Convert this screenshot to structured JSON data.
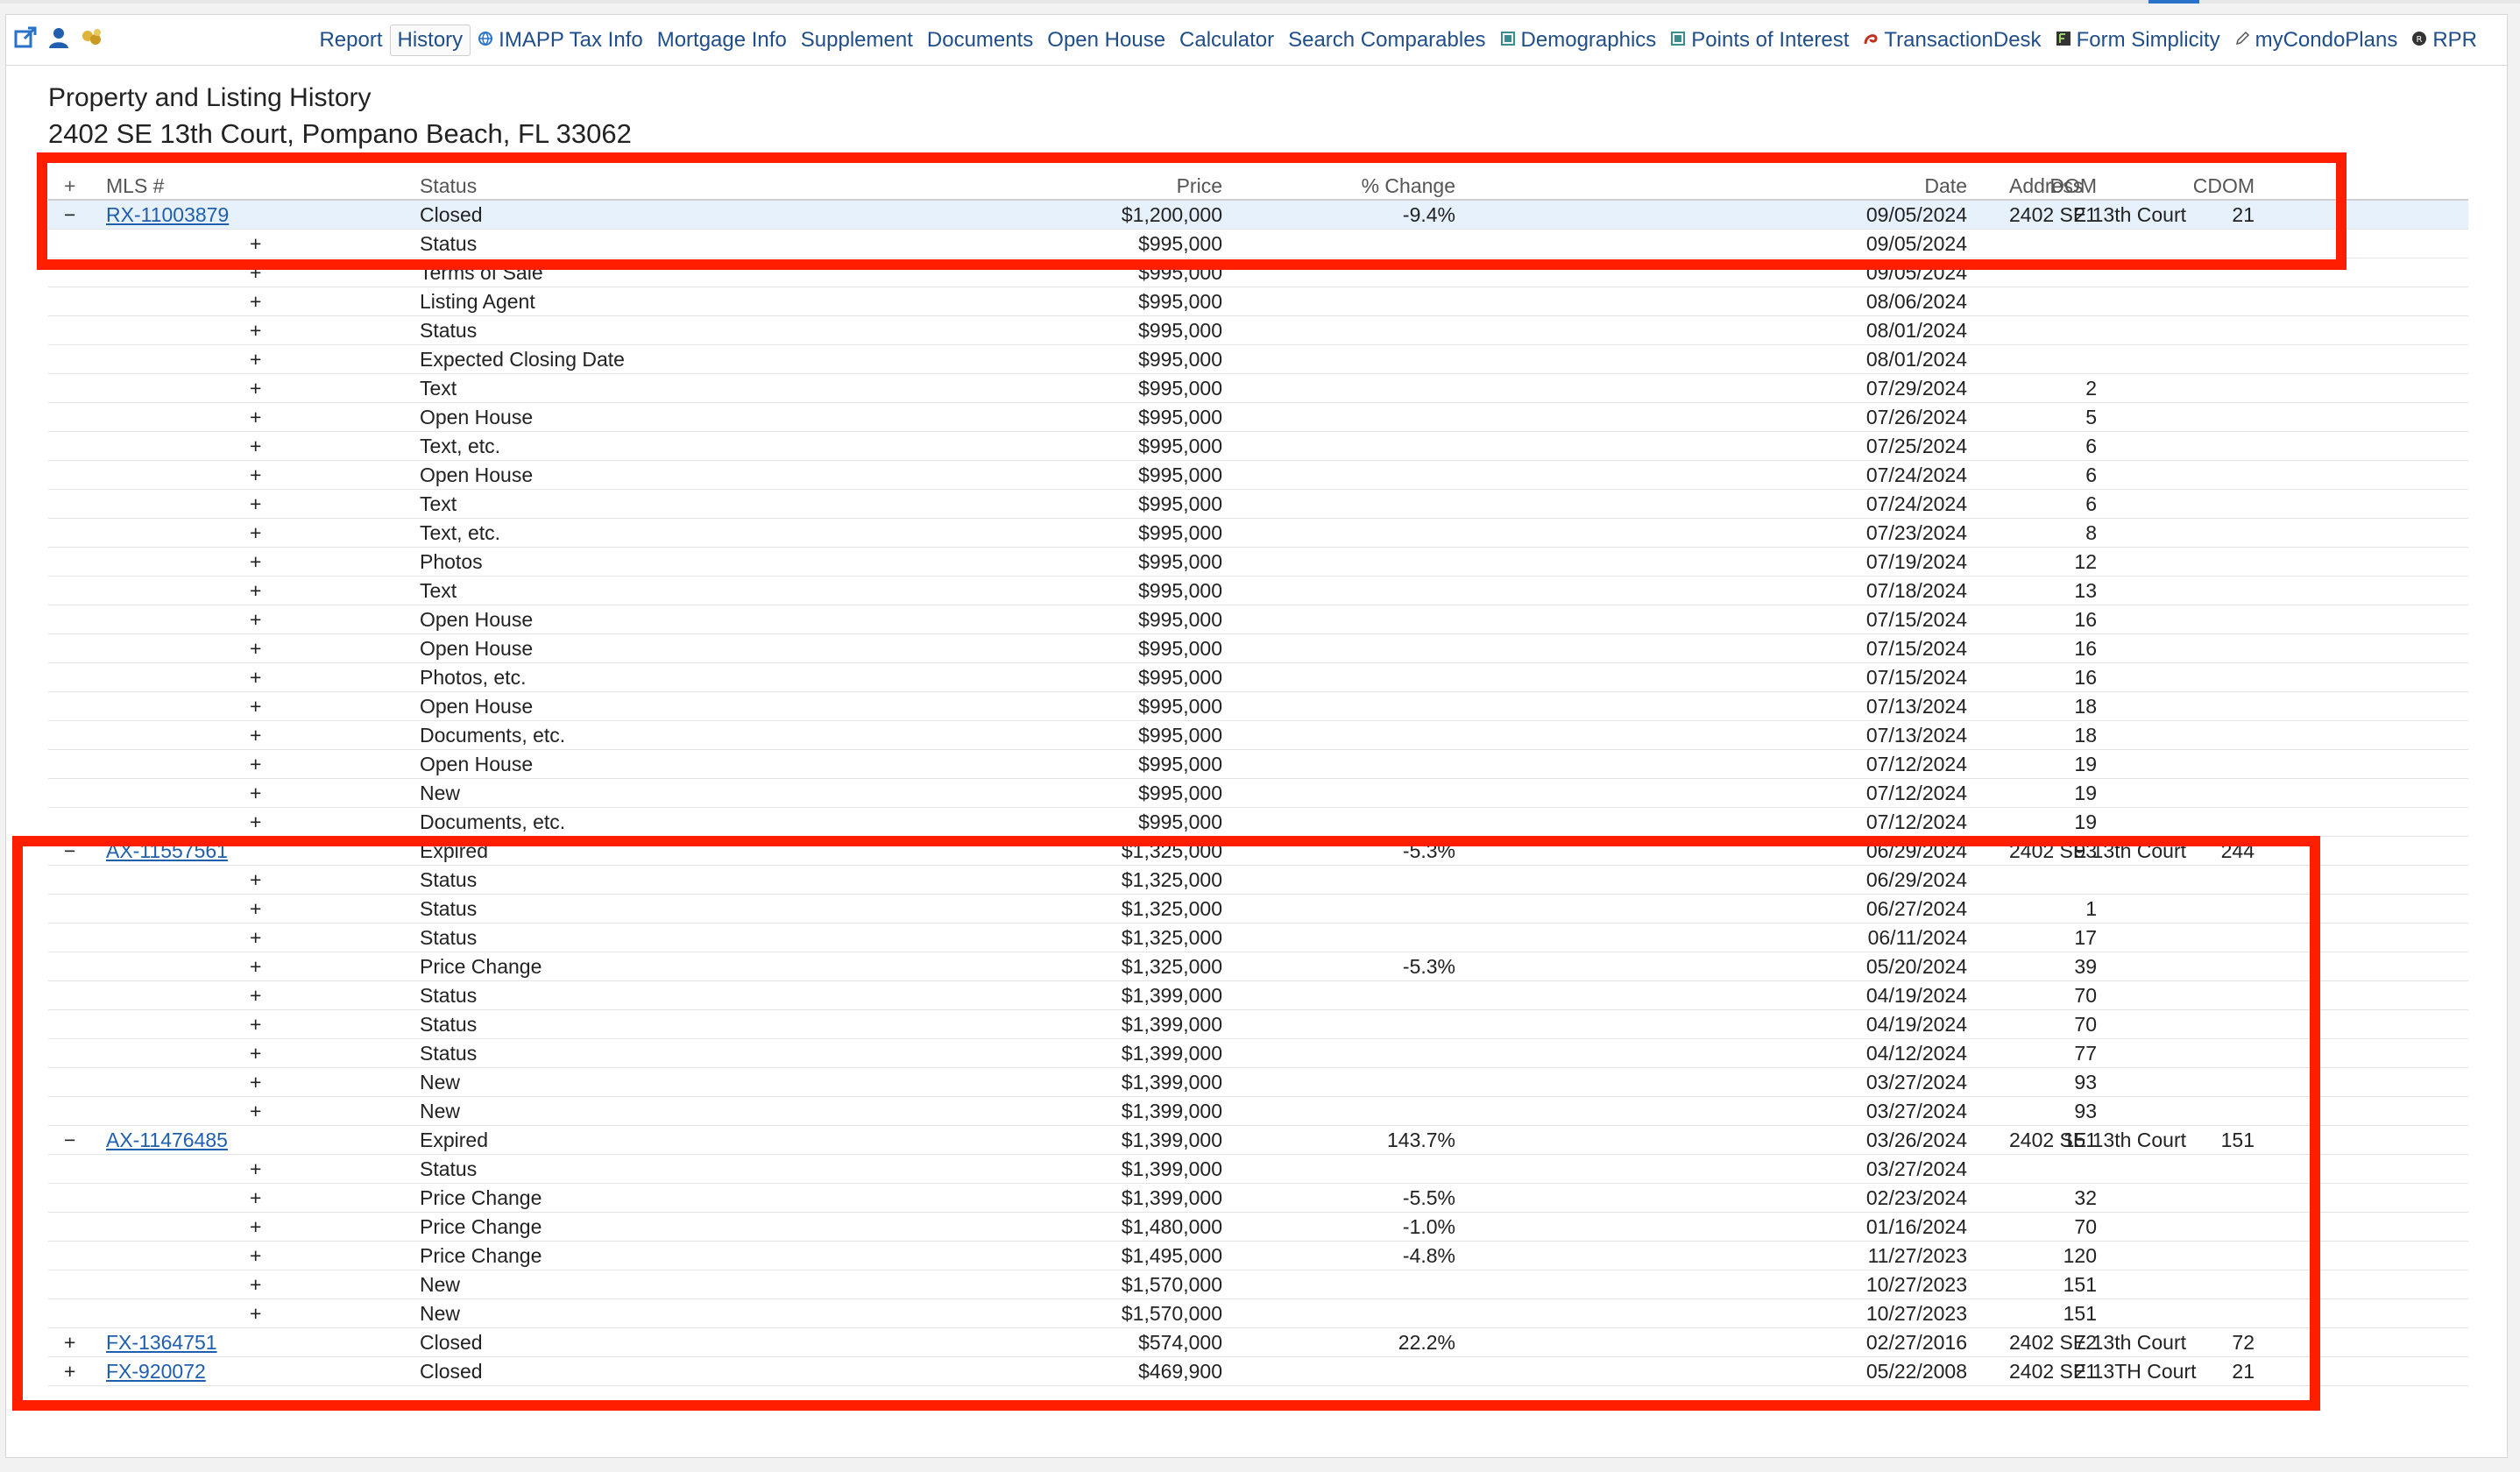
{
  "navbar": {
    "items": [
      {
        "label": "Report",
        "icon": ""
      },
      {
        "label": "History",
        "icon": "",
        "active": true
      },
      {
        "label": "IMAPP Tax Info",
        "icon": "globe-icon"
      },
      {
        "label": "Mortgage Info",
        "icon": ""
      },
      {
        "label": "Supplement",
        "icon": ""
      },
      {
        "label": "Documents",
        "icon": ""
      },
      {
        "label": "Open House",
        "icon": ""
      },
      {
        "label": "Calculator",
        "icon": ""
      },
      {
        "label": "Search Comparables",
        "icon": ""
      },
      {
        "label": "Demographics",
        "icon": "square-icon"
      },
      {
        "label": "Points of Interest",
        "icon": "square-icon"
      },
      {
        "label": "TransactionDesk",
        "icon": "swirl-icon"
      },
      {
        "label": "Form Simplicity",
        "icon": "fs-icon"
      },
      {
        "label": "myCondoPlans",
        "icon": "pencil-icon"
      },
      {
        "label": "RPR",
        "icon": "rpr-icon"
      }
    ]
  },
  "page": {
    "title": "Property and Listing History",
    "subtitle": "2402 SE 13th Court, Pompano Beach, FL 33062"
  },
  "table": {
    "headers": {
      "expand": "+",
      "mls": "MLS #",
      "status": "Status",
      "price": "Price",
      "pct": "% Change",
      "date": "Date",
      "dom": "DOM",
      "cdom": "CDOM",
      "address": "Address"
    },
    "rows": [
      {
        "kind": "main",
        "toggle": "−",
        "mls": "RX-11003879",
        "status": "Closed",
        "price": "$1,200,000",
        "pct": "-9.4%",
        "date": "09/05/2024",
        "dom": "21",
        "cdom": "21",
        "address": "2402 SE 13th Court",
        "selected": true
      },
      {
        "kind": "sub",
        "toggle": "+",
        "status": "Status",
        "price": "$995,000",
        "pct": "",
        "date": "09/05/2024",
        "dom": ""
      },
      {
        "kind": "sub",
        "toggle": "+",
        "status": "Terms of Sale",
        "price": "$995,000",
        "pct": "",
        "date": "09/05/2024",
        "dom": ""
      },
      {
        "kind": "sub",
        "toggle": "+",
        "status": "Listing Agent",
        "price": "$995,000",
        "pct": "",
        "date": "08/06/2024",
        "dom": ""
      },
      {
        "kind": "sub",
        "toggle": "+",
        "status": "Status",
        "price": "$995,000",
        "pct": "",
        "date": "08/01/2024",
        "dom": ""
      },
      {
        "kind": "sub",
        "toggle": "+",
        "status": "Expected Closing Date",
        "price": "$995,000",
        "pct": "",
        "date": "08/01/2024",
        "dom": ""
      },
      {
        "kind": "sub",
        "toggle": "+",
        "status": "Text",
        "price": "$995,000",
        "pct": "",
        "date": "07/29/2024",
        "dom": "2"
      },
      {
        "kind": "sub",
        "toggle": "+",
        "status": "Open House",
        "price": "$995,000",
        "pct": "",
        "date": "07/26/2024",
        "dom": "5"
      },
      {
        "kind": "sub",
        "toggle": "+",
        "status": "Text, etc.",
        "price": "$995,000",
        "pct": "",
        "date": "07/25/2024",
        "dom": "6"
      },
      {
        "kind": "sub",
        "toggle": "+",
        "status": "Open House",
        "price": "$995,000",
        "pct": "",
        "date": "07/24/2024",
        "dom": "6"
      },
      {
        "kind": "sub",
        "toggle": "+",
        "status": "Text",
        "price": "$995,000",
        "pct": "",
        "date": "07/24/2024",
        "dom": "6"
      },
      {
        "kind": "sub",
        "toggle": "+",
        "status": "Text, etc.",
        "price": "$995,000",
        "pct": "",
        "date": "07/23/2024",
        "dom": "8"
      },
      {
        "kind": "sub",
        "toggle": "+",
        "status": "Photos",
        "price": "$995,000",
        "pct": "",
        "date": "07/19/2024",
        "dom": "12"
      },
      {
        "kind": "sub",
        "toggle": "+",
        "status": "Text",
        "price": "$995,000",
        "pct": "",
        "date": "07/18/2024",
        "dom": "13"
      },
      {
        "kind": "sub",
        "toggle": "+",
        "status": "Open House",
        "price": "$995,000",
        "pct": "",
        "date": "07/15/2024",
        "dom": "16"
      },
      {
        "kind": "sub",
        "toggle": "+",
        "status": "Open House",
        "price": "$995,000",
        "pct": "",
        "date": "07/15/2024",
        "dom": "16"
      },
      {
        "kind": "sub",
        "toggle": "+",
        "status": "Photos, etc.",
        "price": "$995,000",
        "pct": "",
        "date": "07/15/2024",
        "dom": "16"
      },
      {
        "kind": "sub",
        "toggle": "+",
        "status": "Open House",
        "price": "$995,000",
        "pct": "",
        "date": "07/13/2024",
        "dom": "18"
      },
      {
        "kind": "sub",
        "toggle": "+",
        "status": "Documents, etc.",
        "price": "$995,000",
        "pct": "",
        "date": "07/13/2024",
        "dom": "18"
      },
      {
        "kind": "sub",
        "toggle": "+",
        "status": "Open House",
        "price": "$995,000",
        "pct": "",
        "date": "07/12/2024",
        "dom": "19"
      },
      {
        "kind": "sub",
        "toggle": "+",
        "status": "New",
        "price": "$995,000",
        "pct": "",
        "date": "07/12/2024",
        "dom": "19"
      },
      {
        "kind": "sub",
        "toggle": "+",
        "status": "Documents, etc.",
        "price": "$995,000",
        "pct": "",
        "date": "07/12/2024",
        "dom": "19"
      },
      {
        "kind": "main",
        "toggle": "−",
        "mls": "AX-11557561",
        "status": "Expired",
        "price": "$1,325,000",
        "pct": "-5.3%",
        "date": "06/29/2024",
        "dom": "93",
        "cdom": "244",
        "address": "2402 SE 13th Court"
      },
      {
        "kind": "sub",
        "toggle": "+",
        "status": "Status",
        "price": "$1,325,000",
        "pct": "",
        "date": "06/29/2024",
        "dom": ""
      },
      {
        "kind": "sub",
        "toggle": "+",
        "status": "Status",
        "price": "$1,325,000",
        "pct": "",
        "date": "06/27/2024",
        "dom": "1"
      },
      {
        "kind": "sub",
        "toggle": "+",
        "status": "Status",
        "price": "$1,325,000",
        "pct": "",
        "date": "06/11/2024",
        "dom": "17"
      },
      {
        "kind": "sub",
        "toggle": "+",
        "status": "Price Change",
        "price": "$1,325,000",
        "pct": "-5.3%",
        "date": "05/20/2024",
        "dom": "39"
      },
      {
        "kind": "sub",
        "toggle": "+",
        "status": "Status",
        "price": "$1,399,000",
        "pct": "",
        "date": "04/19/2024",
        "dom": "70"
      },
      {
        "kind": "sub",
        "toggle": "+",
        "status": "Status",
        "price": "$1,399,000",
        "pct": "",
        "date": "04/19/2024",
        "dom": "70"
      },
      {
        "kind": "sub",
        "toggle": "+",
        "status": "Status",
        "price": "$1,399,000",
        "pct": "",
        "date": "04/12/2024",
        "dom": "77"
      },
      {
        "kind": "sub",
        "toggle": "+",
        "status": "New",
        "price": "$1,399,000",
        "pct": "",
        "date": "03/27/2024",
        "dom": "93"
      },
      {
        "kind": "sub",
        "toggle": "+",
        "status": "New",
        "price": "$1,399,000",
        "pct": "",
        "date": "03/27/2024",
        "dom": "93"
      },
      {
        "kind": "main",
        "toggle": "−",
        "mls": "AX-11476485",
        "status": "Expired",
        "price": "$1,399,000",
        "pct": "143.7%",
        "date": "03/26/2024",
        "dom": "151",
        "cdom": "151",
        "address": "2402 SE 13th Court"
      },
      {
        "kind": "sub",
        "toggle": "+",
        "status": "Status",
        "price": "$1,399,000",
        "pct": "",
        "date": "03/27/2024",
        "dom": ""
      },
      {
        "kind": "sub",
        "toggle": "+",
        "status": "Price Change",
        "price": "$1,399,000",
        "pct": "-5.5%",
        "date": "02/23/2024",
        "dom": "32"
      },
      {
        "kind": "sub",
        "toggle": "+",
        "status": "Price Change",
        "price": "$1,480,000",
        "pct": "-1.0%",
        "date": "01/16/2024",
        "dom": "70"
      },
      {
        "kind": "sub",
        "toggle": "+",
        "status": "Price Change",
        "price": "$1,495,000",
        "pct": "-4.8%",
        "date": "11/27/2023",
        "dom": "120"
      },
      {
        "kind": "sub",
        "toggle": "+",
        "status": "New",
        "price": "$1,570,000",
        "pct": "",
        "date": "10/27/2023",
        "dom": "151"
      },
      {
        "kind": "sub",
        "toggle": "+",
        "status": "New",
        "price": "$1,570,000",
        "pct": "",
        "date": "10/27/2023",
        "dom": "151"
      },
      {
        "kind": "main",
        "toggle": "+",
        "mls": "FX-1364751",
        "status": "Closed",
        "price": "$574,000",
        "pct": "22.2%",
        "date": "02/27/2016",
        "dom": "72",
        "cdom": "72",
        "address": "2402 SE 13th Court"
      },
      {
        "kind": "main",
        "toggle": "+",
        "mls": "FX-920072",
        "status": "Closed",
        "price": "$469,900",
        "pct": "",
        "date": "05/22/2008",
        "dom": "21",
        "cdom": "21",
        "address": "2402 SE 13TH Court"
      }
    ]
  },
  "colors": {
    "link": "#1f5fae",
    "highlight_box": "#ff1e00",
    "selected_row": "#e6f1fb"
  }
}
